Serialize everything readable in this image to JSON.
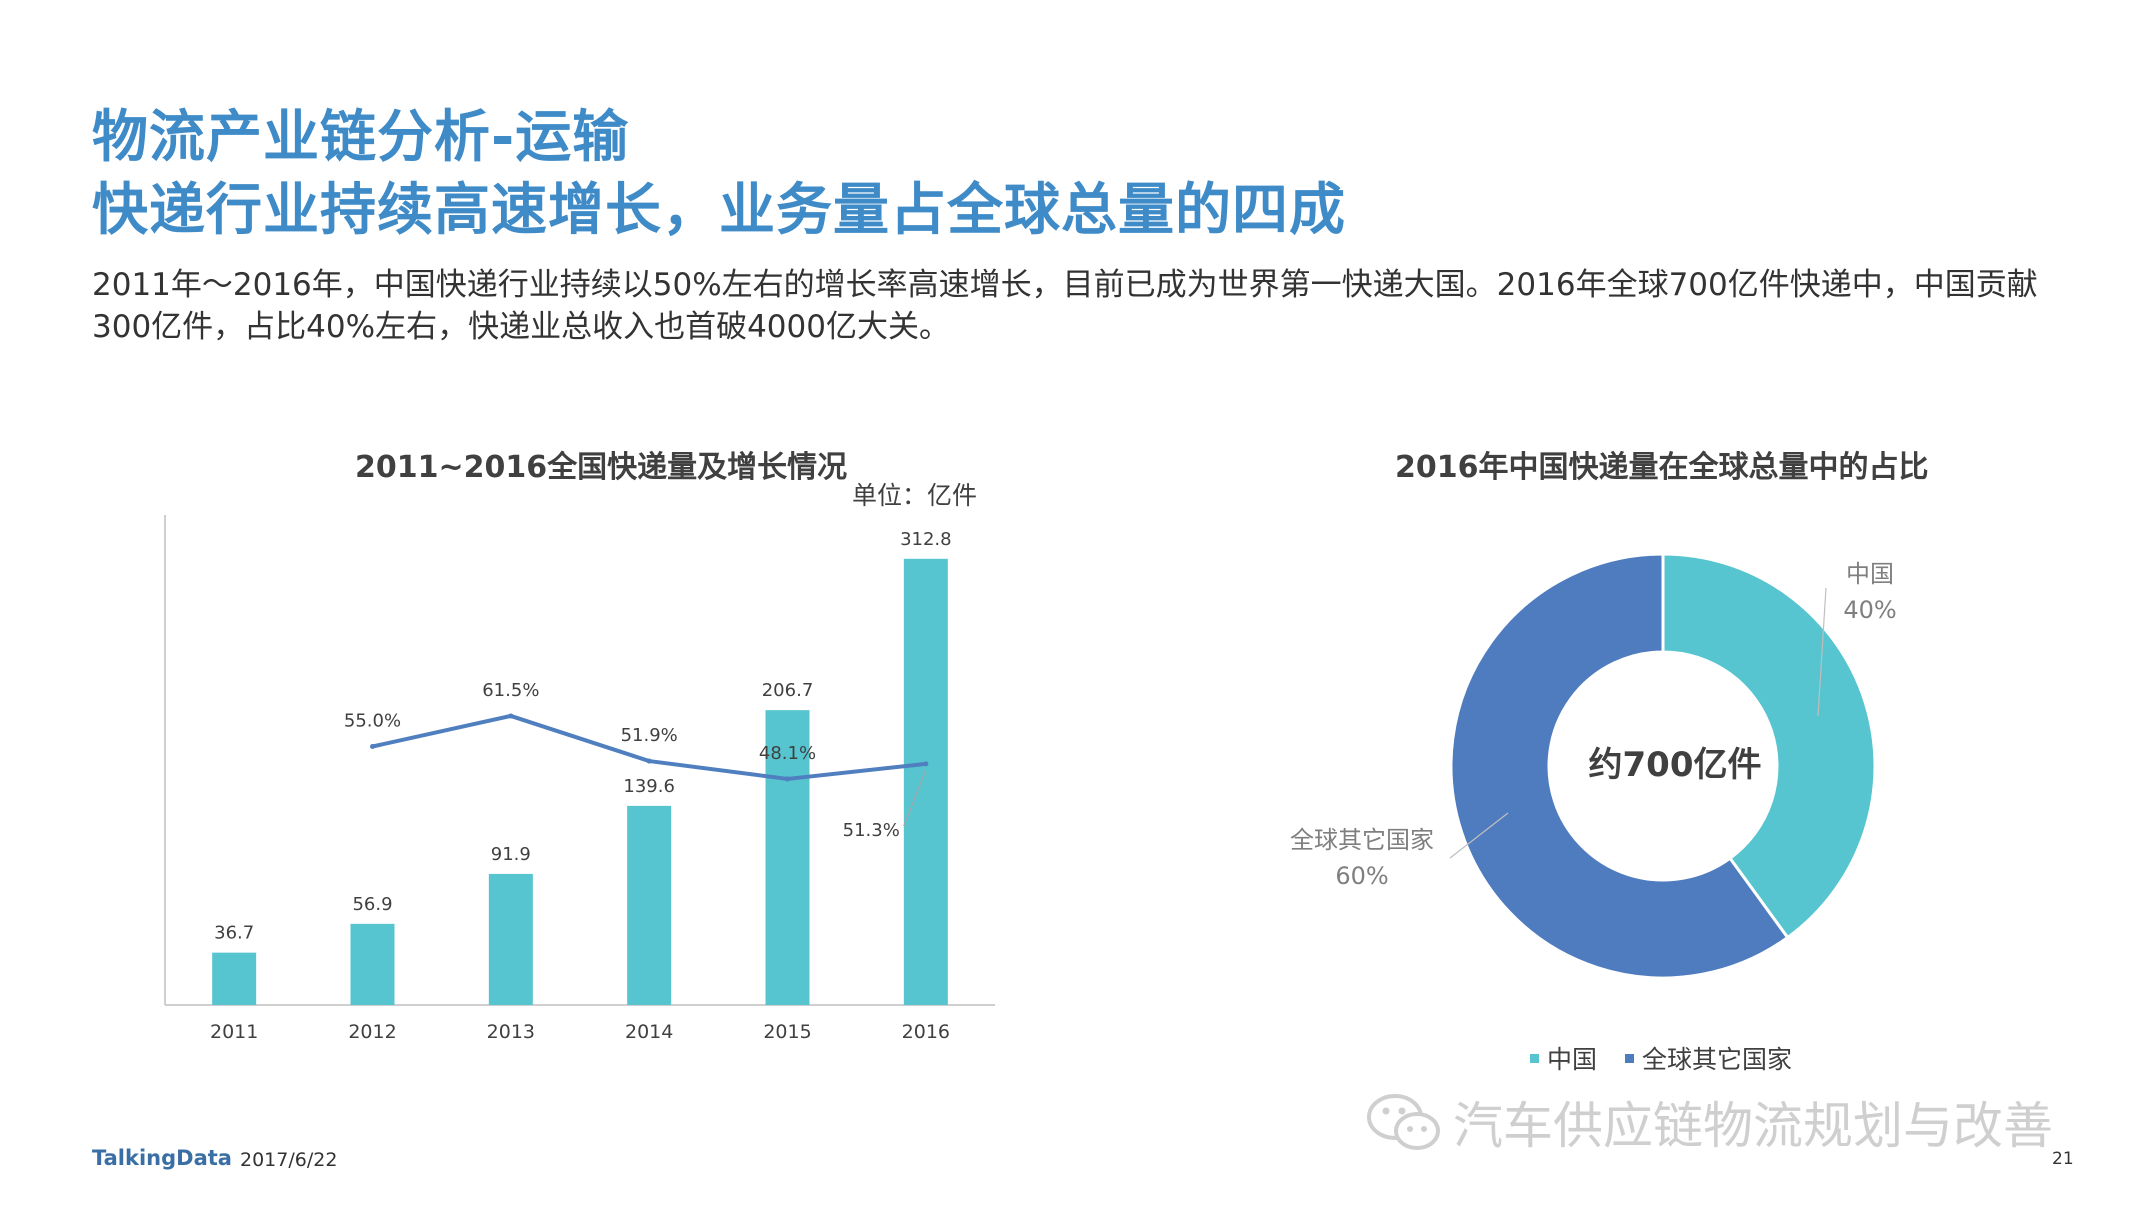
{
  "header": {
    "title_line1": "物流产业链分析-运输",
    "title_line2": "快递行业持续高速增长，业务量占全球总量的四成"
  },
  "description": "2011年～2016年，中国快递行业持续以50%左右的增长率高速增长，目前已成为世界第一快递大国。2016年全球700亿件快递中，中国贡献300亿件，占比40%左右，快递业总收入也首破4000亿大关。",
  "colors": {
    "title": "#3f8bc8",
    "bar": "#56c5d0",
    "line": "#4f7fbf",
    "china": "#56c5d0",
    "rest": "#4f7bbf"
  },
  "chart_data": [
    {
      "type": "bar",
      "title": "2011~2016全国快递量及增长情况",
      "unit": "单位：亿件",
      "categories": [
        "2011",
        "2012",
        "2013",
        "2014",
        "2015",
        "2016"
      ],
      "series": [
        {
          "type": "bar",
          "values": [
            36.7,
            56.9,
            91.9,
            139.6,
            206.7,
            312.8
          ],
          "labels": [
            "36.7",
            "56.9",
            "91.9",
            "139.6",
            "206.7",
            "312.8"
          ]
        },
        {
          "type": "line",
          "values": [
            null,
            55.0,
            61.5,
            51.9,
            48.1,
            51.3
          ],
          "labels": [
            "",
            "55.0%",
            "61.5%",
            "51.9%",
            "48.1%",
            "51.3%"
          ]
        }
      ],
      "ylim": [
        0,
        340
      ],
      "line_ylim": [
        0,
        100
      ],
      "grid": false
    },
    {
      "type": "pie",
      "variant": "donut",
      "title": "2016年中国快递量在全球总量中的占比",
      "center_label": "约700亿件",
      "slices": [
        {
          "name": "中国",
          "value": 40,
          "label": "40%"
        },
        {
          "name": "全球其它国家",
          "value": 60,
          "label": "60%"
        }
      ],
      "legend": "bottom"
    }
  ],
  "footer": {
    "brand": "TalkingData",
    "date": "2017/6/22",
    "page": "21"
  },
  "watermark": {
    "text": "汽车供应链物流规划与改善",
    "icon": "wechat-icon"
  }
}
